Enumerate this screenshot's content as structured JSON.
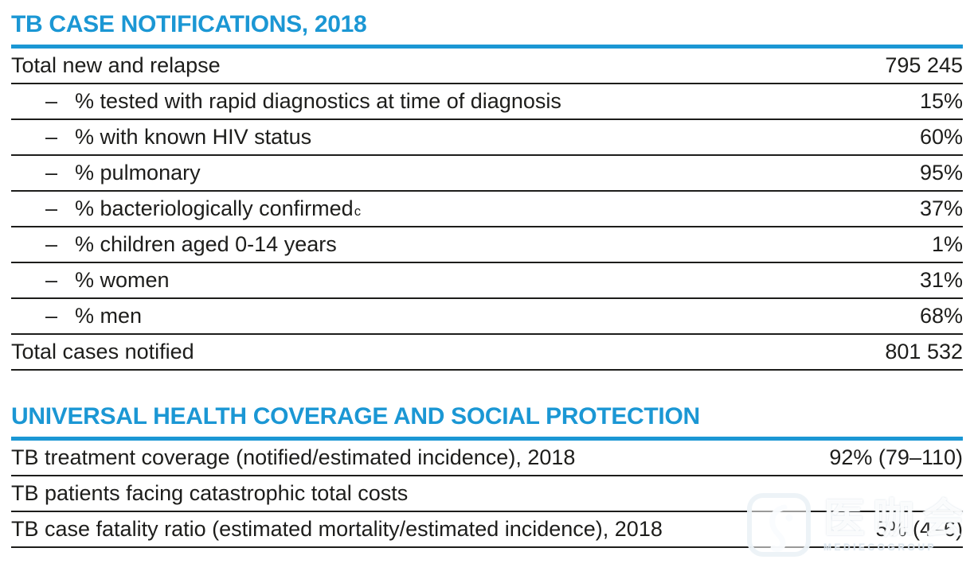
{
  "colors": {
    "accent_blue": "#1b97d4",
    "text_black": "#1d1d1b",
    "rule_black": "#1d1d1b"
  },
  "glyphs": {
    "dash": "–"
  },
  "sections": [
    {
      "title": "TB CASE NOTIFICATIONS, 2018",
      "rows": [
        {
          "label": "Total new and relapse",
          "indent": false,
          "value": "795 245"
        },
        {
          "label": "% tested with rapid diagnostics at time of diagnosis",
          "indent": true,
          "value": "15%"
        },
        {
          "label": "% with known HIV status",
          "indent": true,
          "value": "60%"
        },
        {
          "label": "% pulmonary",
          "indent": true,
          "value": "95%"
        },
        {
          "label": "% bacteriologically confirmed",
          "sup": "c",
          "indent": true,
          "value": "37%"
        },
        {
          "label": "% children aged 0-14 years",
          "indent": true,
          "value": "1%"
        },
        {
          "label": "% women",
          "indent": true,
          "value": "31%"
        },
        {
          "label": "% men",
          "indent": true,
          "value": "68%"
        },
        {
          "label": "Total cases notified",
          "indent": false,
          "value": "801 532"
        }
      ]
    },
    {
      "title": "UNIVERSAL HEALTH COVERAGE AND SOCIAL PROTECTION",
      "rows": [
        {
          "label": "TB treatment coverage (notified/estimated incidence), 2018",
          "indent": false,
          "value": "92% (79–110)"
        },
        {
          "label": "TB patients facing catastrophic total costs",
          "indent": false,
          "value": ""
        },
        {
          "label": "TB case fatality ratio (estimated mortality/estimated incidence), 2018",
          "indent": false,
          "value": "5% (4–6)"
        }
      ]
    }
  ],
  "watermark": {
    "brand": "医咖会",
    "subtext": "MEDIECOGROUP"
  }
}
